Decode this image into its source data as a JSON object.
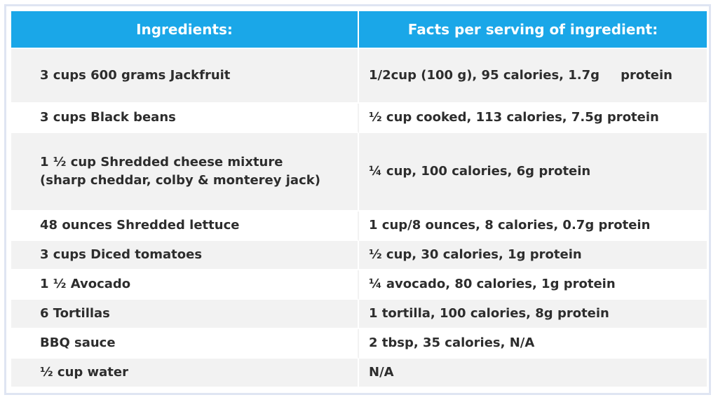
{
  "table": {
    "headers": {
      "ingredients": "Ingredients:",
      "facts": "Facts per serving of ingredient:"
    },
    "rows": [
      {
        "ingredient": "3 cups 600 grams Jackfruit",
        "facts_a": "1/2cup (100 g), 95 calories, 1.7g",
        "facts_b": "protein"
      },
      {
        "ingredient": "3 cups Black beans",
        "facts": "½  cup cooked, 113 calories, 7.5g protein"
      },
      {
        "ingredient_line1": "1 ½ cup Shredded cheese mixture",
        "ingredient_line2": "(sharp cheddar, colby & monterey jack)",
        "facts": "¼ cup, 100 calories, 6g protein"
      },
      {
        "ingredient": "48 ounces Shredded lettuce",
        "facts": "1 cup/8 ounces, 8 calories, 0.7g protein"
      },
      {
        "ingredient": "3 cups Diced tomatoes",
        "facts": "½ cup, 30 calories, 1g protein"
      },
      {
        "ingredient": "1 ½ Avocado",
        "facts": "¼ avocado, 80 calories, 1g protein"
      },
      {
        "ingredient": "6 Tortillas",
        "facts": "1 tortilla, 100 calories, 8g protein"
      },
      {
        "ingredient": "BBQ sauce",
        "facts": "2 tbsp, 35 calories, N/A"
      },
      {
        "ingredient": "½ cup water",
        "facts": "N/A"
      }
    ]
  },
  "colors": {
    "header_bg": "#1aa7e8",
    "header_text": "#ffffff",
    "row_shade": "#f2f2f2",
    "text": "#2d2d2d",
    "frame": "#dfe5f2"
  }
}
